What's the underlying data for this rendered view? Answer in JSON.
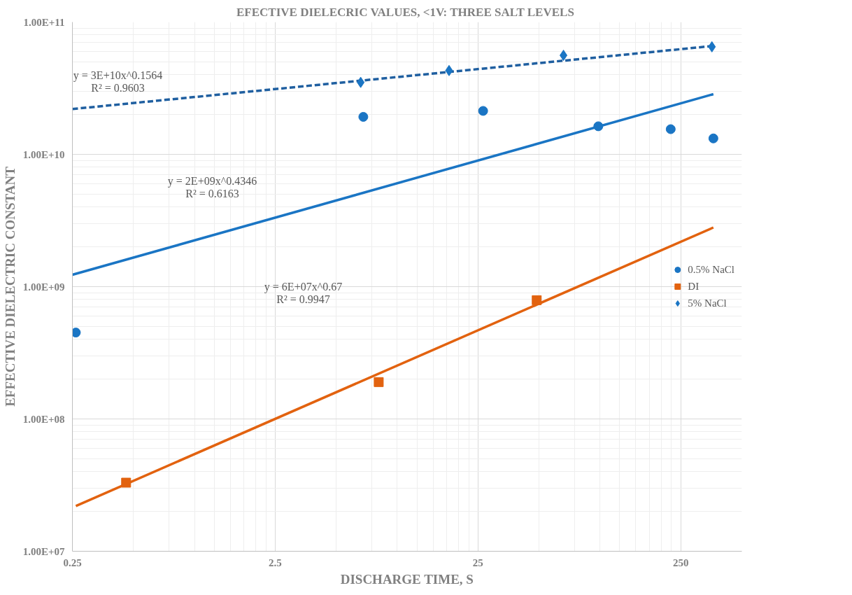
{
  "chart_data": {
    "type": "scatter",
    "title": "EFECTIVE DIELECRIC VALUES, <1V:  THREE SALT LEVELS",
    "xlabel": "DISCHARGE TIME, S",
    "ylabel": "EFFECTIVE DIELECTRIC CONSTANT",
    "log": "xy",
    "grid": true,
    "legend": "right",
    "xlim": [
      0.25,
      500
    ],
    "xticks": [
      0.25,
      2.5,
      25,
      250
    ],
    "ylim": [
      10000000,
      100000000000
    ],
    "yticks": [
      {
        "value": 10000000,
        "label": "1.00E+07"
      },
      {
        "value": 100000000,
        "label": "1.00E+08"
      },
      {
        "value": 1000000000,
        "label": "1.00E+09"
      },
      {
        "value": 10000000000,
        "label": "1.00E+10"
      },
      {
        "value": 100000000000,
        "label": "1.00E+11"
      }
    ],
    "series": [
      {
        "type": "line",
        "color": "#1f5fa0",
        "line_style": "dashed",
        "x": [
          0.25,
          362
        ],
        "values": [
          22000000000,
          66000000000
        ]
      },
      {
        "type": "line",
        "color": "#1a75c4",
        "line_style": "solid",
        "x": [
          0.25,
          362
        ],
        "values": [
          1230000000,
          28500000000
        ]
      },
      {
        "type": "line",
        "color": "#e2620f",
        "line_style": "solid",
        "x": [
          0.26,
          362
        ],
        "values": [
          22000000,
          2800000000
        ]
      },
      {
        "name": "0.5% NaCl",
        "color": "#1a75c4",
        "marker": "circle",
        "x": [
          0.26,
          6.8,
          26.5,
          98,
          223,
          362
        ],
        "values": [
          450000000,
          19200000000,
          21300000000,
          16300000000,
          15500000000,
          13200000000
        ]
      },
      {
        "name": "DI",
        "color": "#e2620f",
        "marker": "square",
        "x": [
          0.46,
          8.1,
          48.7
        ],
        "values": [
          33000000,
          190000000,
          790000000
        ]
      },
      {
        "name": "5% NaCl",
        "color": "#1a75c4",
        "marker": "diamond",
        "x": [
          6.6,
          18,
          66,
          356
        ],
        "values": [
          35000000000,
          43000000000,
          56000000000,
          65000000000
        ]
      }
    ],
    "annotations": [
      "y = 3E+10x^0.1564",
      "R² = 0.9603",
      "y = 2E+09x^0.4346",
      "R² = 0.6163",
      "y = 6E+07x^0.67",
      "R² = 0.9947"
    ]
  }
}
